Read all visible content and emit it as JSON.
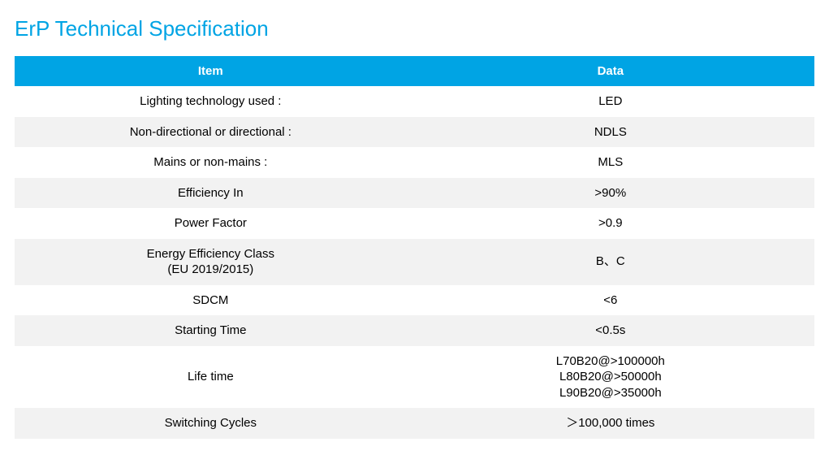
{
  "title": "ErP Technical Specification",
  "colors": {
    "accent": "#00a4e4",
    "header_text": "#ffffff",
    "row_odd_bg": "#ffffff",
    "row_even_bg": "#f2f2f2",
    "body_text": "#000000"
  },
  "table": {
    "type": "table",
    "header_fontsize": 15,
    "body_fontsize": 15,
    "columns": [
      {
        "key": "item",
        "label": "Item",
        "width_pct": 49
      },
      {
        "key": "data",
        "label": "Data",
        "width_pct": 51
      }
    ],
    "rows": [
      {
        "item": "Lighting technology used :",
        "data": "LED"
      },
      {
        "item": "Non-directional or directional :",
        "data": "NDLS"
      },
      {
        "item": "Mains or non-mains :",
        "data": "MLS"
      },
      {
        "item": "Efficiency In",
        "data": ">90%"
      },
      {
        "item": "Power Factor",
        "data": ">0.9"
      },
      {
        "item": "Energy Efficiency Class\n(EU 2019/2015)",
        "data": "B、C"
      },
      {
        "item": "SDCM",
        "data": "<6"
      },
      {
        "item": "Starting Time",
        "data": "<0.5s"
      },
      {
        "item": "Life time",
        "data": "L70B20@>100000h\nL80B20@>50000h\nL90B20@>35000h"
      },
      {
        "item": "Switching Cycles",
        "data": "＞100,000 times"
      }
    ]
  }
}
